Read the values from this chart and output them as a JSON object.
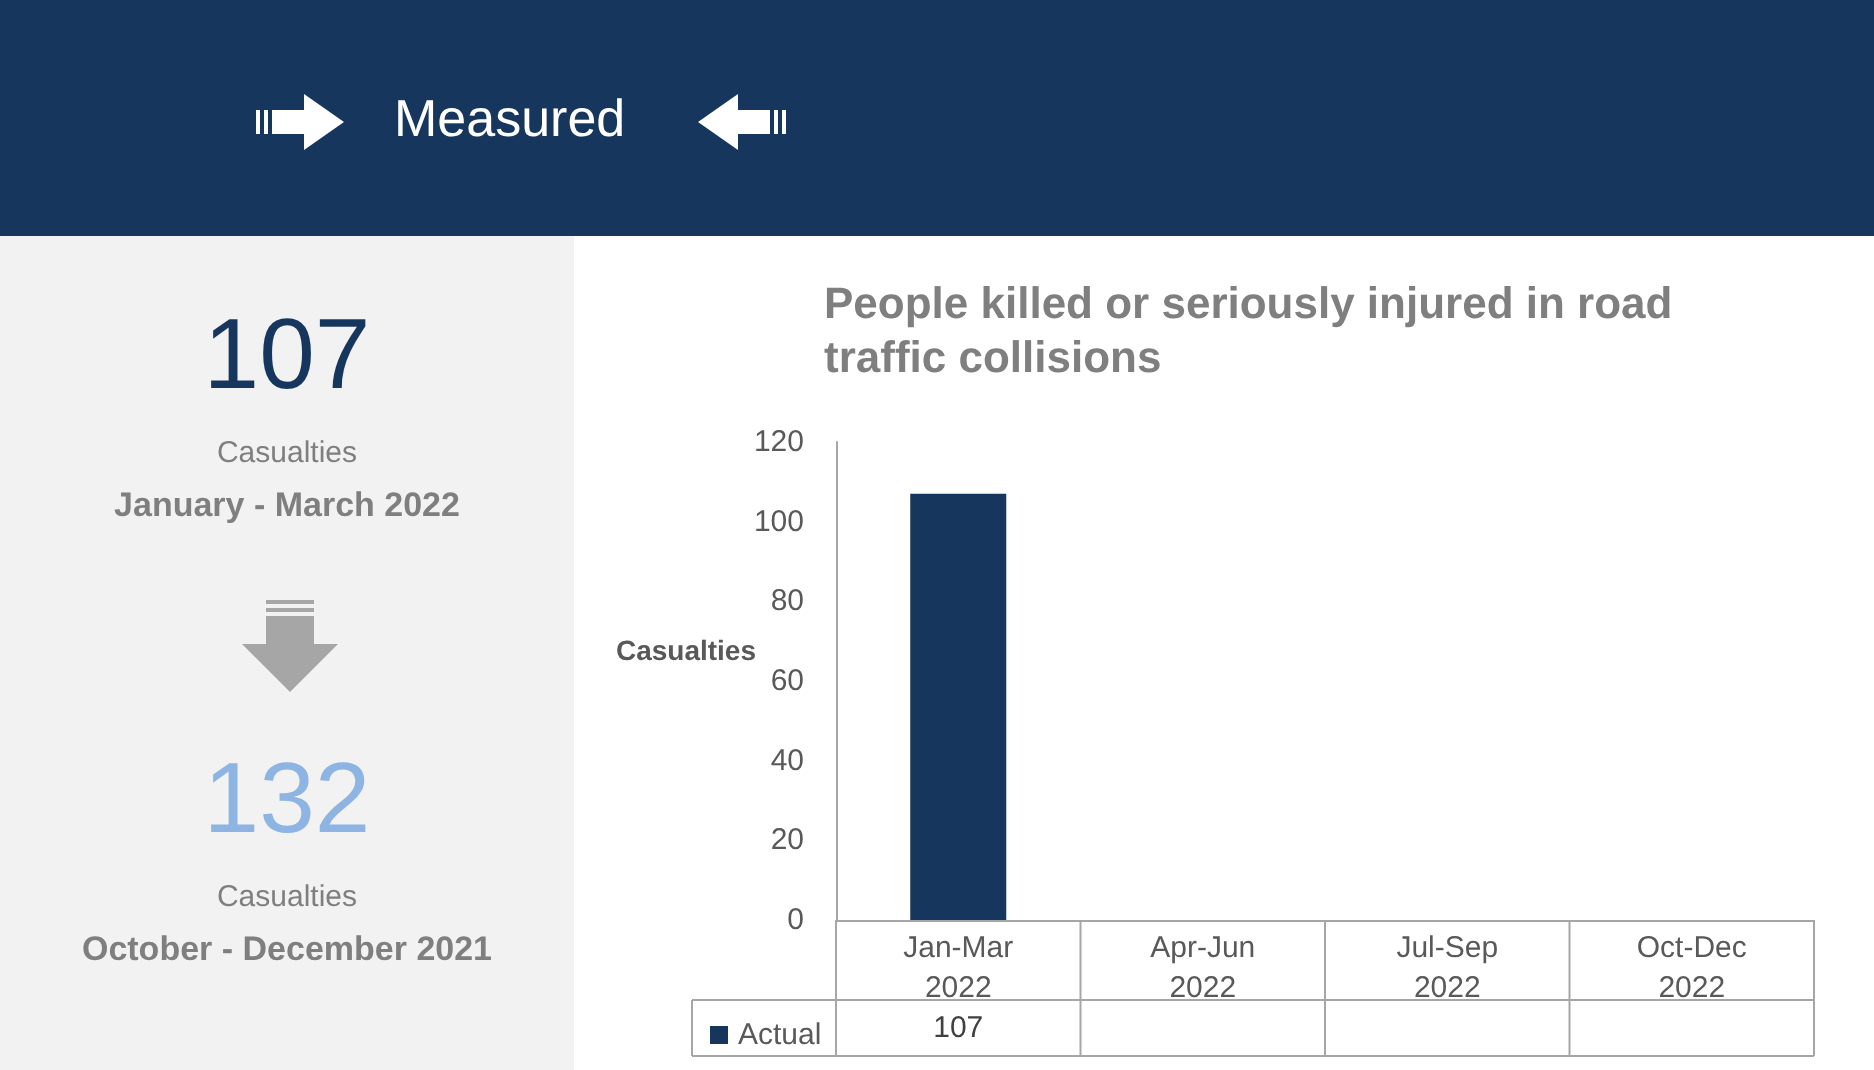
{
  "chart_data": [
    {
      "type": "bar",
      "title": "People killed or seriously injured in road traffic collisions",
      "ylabel": "Casualties",
      "categories": [
        "Jan-Mar 2022",
        "Apr-Jun 2022",
        "Jul-Sep 2022",
        "Oct-Dec 2022"
      ],
      "series": [
        {
          "name": "Actual",
          "color": "#17365d",
          "values": [
            107,
            null,
            null,
            null
          ]
        }
      ],
      "ylim": [
        0,
        120
      ],
      "yticks": [
        0,
        20,
        40,
        60,
        80,
        100,
        120
      ],
      "grid": false,
      "legend": "bottom",
      "data_labels": true
    },
    {
      "type": "other",
      "title": "Measured",
      "annotations": [
        "107",
        "Casualties",
        "January - March 2022",
        "132",
        "Casualties",
        "October - December 2021"
      ]
    }
  ]
}
